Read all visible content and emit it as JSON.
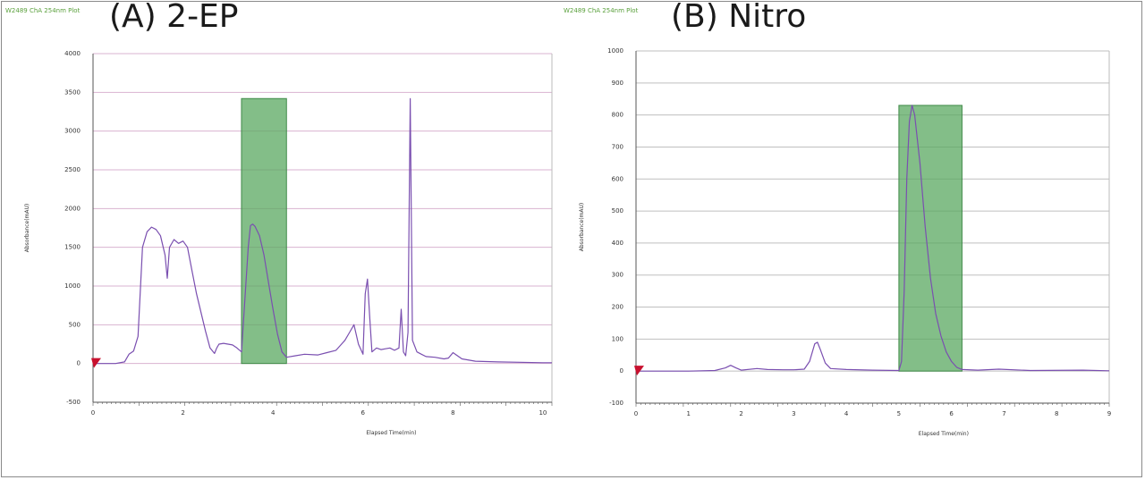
{
  "charts": [
    {
      "panel_label": "(A) 2-EP",
      "plot_header": "W2489 ChA 254nm Plot",
      "xlabel": "Elapsed Time(min)",
      "ylabel": "Absorbance(mAU)",
      "trace_color": "#7a4fb0",
      "fraction_color": "#5aa860",
      "marker_color": "#c8102e",
      "gridline_color": "#d9b3d0"
    },
    {
      "panel_label": "(B) Nitro",
      "plot_header": "W2489 ChA 254nm Plot",
      "xlabel": "Elapsed Time(min)",
      "ylabel": "Absorbance(mAU)",
      "trace_color": "#7a4fb0",
      "fraction_color": "#5aa860",
      "marker_color": "#c8102e",
      "gridline_color": "#bfbfbf"
    }
  ],
  "chart_data": [
    {
      "type": "line",
      "title": "W2489 ChA 254nm Plot",
      "xlabel": "Elapsed Time(min)",
      "ylabel": "Absorbance(mAU)",
      "xlim": [
        0,
        10.2
      ],
      "ylim": [
        -500,
        4000
      ],
      "x_ticks": [
        "0",
        "2",
        "4",
        "6",
        "8",
        "10"
      ],
      "y_ticks": [
        "4000",
        "3500",
        "3000",
        "2500",
        "2000",
        "1500",
        "1000",
        "500",
        "0",
        "-500"
      ],
      "grid": true,
      "fraction_window": {
        "x_start": 3.3,
        "x_end": 4.3,
        "y_top": 3420
      },
      "series": [
        {
          "x": [
            0,
            0.5,
            0.7,
            0.8,
            0.9,
            1.0,
            1.1,
            1.2,
            1.3,
            1.4,
            1.5,
            1.6,
            1.65,
            1.7,
            1.8,
            1.9,
            2.0,
            2.1,
            2.2,
            2.3,
            2.5,
            2.6,
            2.7,
            2.75,
            2.8,
            2.9,
            3.0,
            3.1,
            3.2,
            3.3,
            3.45,
            3.5,
            3.55,
            3.6,
            3.7,
            3.8,
            3.9,
            4.0,
            4.1,
            4.2,
            4.3,
            4.5,
            4.7,
            5.0,
            5.2,
            5.4,
            5.6,
            5.7,
            5.8,
            5.9,
            6.0,
            6.05,
            6.1,
            6.15,
            6.2,
            6.3,
            6.4,
            6.5,
            6.6,
            6.7,
            6.8,
            6.85,
            6.9,
            6.95,
            7.0,
            7.05,
            7.1,
            7.2,
            7.3,
            7.4,
            7.6,
            7.8,
            7.9,
            8.0,
            8.2,
            8.5,
            9.0,
            10.0,
            10.2
          ],
          "y": [
            0,
            0,
            20,
            120,
            160,
            350,
            1500,
            1700,
            1760,
            1730,
            1650,
            1400,
            1100,
            1500,
            1600,
            1550,
            1580,
            1500,
            1200,
            900,
            420,
            200,
            130,
            200,
            250,
            260,
            250,
            240,
            200,
            150,
            1500,
            1780,
            1800,
            1770,
            1650,
            1400,
            1050,
            700,
            380,
            150,
            80,
            100,
            120,
            110,
            140,
            170,
            300,
            400,
            500,
            250,
            120,
            900,
            1090,
            600,
            150,
            200,
            180,
            190,
            200,
            170,
            200,
            700,
            150,
            100,
            400,
            3420,
            300,
            150,
            120,
            90,
            80,
            60,
            70,
            140,
            60,
            30,
            20,
            10,
            10
          ]
        }
      ]
    },
    {
      "type": "line",
      "title": "W2489 ChA 254nm Plot",
      "xlabel": "Elapsed Time(min)",
      "ylabel": "Absorbance(mAU)",
      "xlim": [
        0,
        9
      ],
      "ylim": [
        -100,
        1000
      ],
      "x_ticks": [
        "0",
        "1",
        "2",
        "3",
        "4",
        "5",
        "6",
        "7",
        "8",
        "9"
      ],
      "y_ticks": [
        "1000",
        "900",
        "800",
        "700",
        "600",
        "500",
        "400",
        "300",
        "200",
        "100",
        "0",
        "-100"
      ],
      "grid": true,
      "fraction_window": {
        "x_start": 5.0,
        "x_end": 6.2,
        "y_top": 830
      },
      "series": [
        {
          "x": [
            0,
            1.0,
            1.5,
            1.7,
            1.8,
            1.9,
            2.0,
            2.3,
            2.5,
            2.8,
            3.0,
            3.2,
            3.3,
            3.4,
            3.45,
            3.5,
            3.6,
            3.7,
            4.0,
            4.5,
            5.0,
            5.05,
            5.1,
            5.15,
            5.2,
            5.25,
            5.3,
            5.4,
            5.5,
            5.6,
            5.7,
            5.8,
            5.9,
            6.0,
            6.1,
            6.2,
            6.5,
            6.9,
            7.5,
            8.5,
            9.0
          ],
          "y": [
            0,
            0,
            2,
            10,
            18,
            10,
            3,
            8,
            5,
            4,
            4,
            6,
            30,
            85,
            90,
            70,
            25,
            8,
            5,
            3,
            2,
            30,
            250,
            600,
            780,
            830,
            800,
            650,
            450,
            290,
            180,
            110,
            60,
            30,
            12,
            5,
            3,
            6,
            2,
            3,
            1
          ]
        }
      ]
    }
  ]
}
